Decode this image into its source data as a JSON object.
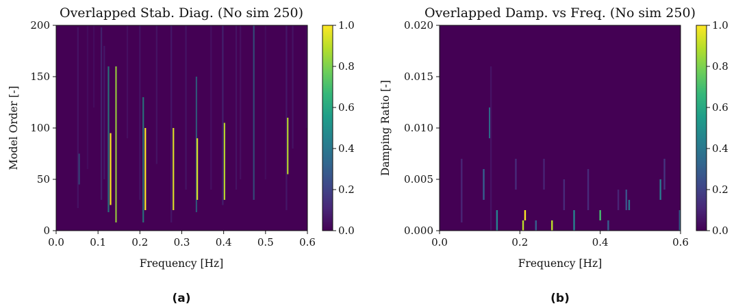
{
  "colors": {
    "background": "#440154",
    "colormap": [
      "#440154",
      "#482878",
      "#3e4989",
      "#31688e",
      "#26828e",
      "#1f9e89",
      "#35b779",
      "#6ece58",
      "#b5de2b",
      "#fde725"
    ]
  },
  "chart_data": [
    {
      "type": "heatmap",
      "panel_label": "(a)",
      "title": "Overlapped Stab. Diag. (No sim 250)",
      "xlabel": "Frequency [Hz]",
      "ylabel": "Model Order [-]",
      "xlim": [
        0.0,
        0.6
      ],
      "ylim": [
        0,
        200
      ],
      "xticks": [
        "0.0",
        "0.1",
        "0.2",
        "0.3",
        "0.4",
        "0.5",
        "0.6"
      ],
      "yticks": [
        "0",
        "50",
        "100",
        "150",
        "200"
      ],
      "colorbar": {
        "range": [
          0.0,
          1.0
        ],
        "ticks": [
          "0.0",
          "0.2",
          "0.4",
          "0.6",
          "0.8",
          "1.0"
        ]
      },
      "columns": [
        {
          "freq": 0.052,
          "order_range": [
            22,
            198
          ],
          "intensity": 0.12
        },
        {
          "freq": 0.055,
          "order_range": [
            45,
            75
          ],
          "intensity": 0.35
        },
        {
          "freq": 0.075,
          "order_range": [
            60,
            200
          ],
          "intensity": 0.08
        },
        {
          "freq": 0.09,
          "order_range": [
            120,
            200
          ],
          "intensity": 0.08
        },
        {
          "freq": 0.108,
          "order_range": [
            30,
            198
          ],
          "intensity": 0.2
        },
        {
          "freq": 0.115,
          "order_range": [
            50,
            180
          ],
          "intensity": 0.15
        },
        {
          "freq": 0.125,
          "order_range": [
            18,
            160
          ],
          "intensity": 0.55
        },
        {
          "freq": 0.13,
          "order_range": [
            25,
            95
          ],
          "intensity": 1.0
        },
        {
          "freq": 0.143,
          "order_range": [
            8,
            160
          ],
          "intensity": 0.85
        },
        {
          "freq": 0.17,
          "order_range": [
            90,
            200
          ],
          "intensity": 0.1
        },
        {
          "freq": 0.2,
          "order_range": [
            30,
            200
          ],
          "intensity": 0.12
        },
        {
          "freq": 0.208,
          "order_range": [
            8,
            130
          ],
          "intensity": 0.55
        },
        {
          "freq": 0.213,
          "order_range": [
            20,
            100
          ],
          "intensity": 1.0
        },
        {
          "freq": 0.24,
          "order_range": [
            65,
            200
          ],
          "intensity": 0.12
        },
        {
          "freq": 0.275,
          "order_range": [
            8,
            200
          ],
          "intensity": 0.15
        },
        {
          "freq": 0.28,
          "order_range": [
            20,
            100
          ],
          "intensity": 0.95
        },
        {
          "freq": 0.31,
          "order_range": [
            40,
            200
          ],
          "intensity": 0.12
        },
        {
          "freq": 0.335,
          "order_range": [
            18,
            150
          ],
          "intensity": 0.45
        },
        {
          "freq": 0.337,
          "order_range": [
            30,
            90
          ],
          "intensity": 0.95
        },
        {
          "freq": 0.37,
          "order_range": [
            40,
            200
          ],
          "intensity": 0.1
        },
        {
          "freq": 0.398,
          "order_range": [
            25,
            200
          ],
          "intensity": 0.2
        },
        {
          "freq": 0.402,
          "order_range": [
            30,
            105
          ],
          "intensity": 0.9
        },
        {
          "freq": 0.43,
          "order_range": [
            40,
            200
          ],
          "intensity": 0.12
        },
        {
          "freq": 0.44,
          "order_range": [
            50,
            200
          ],
          "intensity": 0.1
        },
        {
          "freq": 0.472,
          "order_range": [
            30,
            200
          ],
          "intensity": 0.4
        },
        {
          "freq": 0.5,
          "order_range": [
            50,
            200
          ],
          "intensity": 0.08
        },
        {
          "freq": 0.55,
          "order_range": [
            20,
            200
          ],
          "intensity": 0.15
        },
        {
          "freq": 0.553,
          "order_range": [
            55,
            110
          ],
          "intensity": 0.9
        },
        {
          "freq": 0.565,
          "order_range": [
            80,
            200
          ],
          "intensity": 0.12
        },
        {
          "freq": 0.598,
          "order_range": [
            100,
            200
          ],
          "intensity": 0.08
        }
      ]
    },
    {
      "type": "heatmap",
      "panel_label": "(b)",
      "title": "Overlapped Damp. vs Freq. (No sim 250)",
      "xlabel": "Frequency [Hz]",
      "ylabel": "Damping Ratio [-]",
      "xlim": [
        0.0,
        0.6
      ],
      "ylim": [
        0.0,
        0.02
      ],
      "xticks": [
        "0.0",
        "0.2",
        "0.4",
        "0.6"
      ],
      "yticks": [
        "0.000",
        "0.005",
        "0.010",
        "0.015",
        "0.020"
      ],
      "colorbar": {
        "range": [
          0.0,
          1.0
        ],
        "ticks": [
          "0.0",
          "0.2",
          "0.4",
          "0.6",
          "0.8",
          "1.0"
        ]
      },
      "columns": [
        {
          "freq": 0.055,
          "damp_range": [
            0.0008,
            0.007
          ],
          "intensity": 0.1
        },
        {
          "freq": 0.11,
          "damp_range": [
            0.003,
            0.006
          ],
          "intensity": 0.3
        },
        {
          "freq": 0.125,
          "damp_range": [
            0.009,
            0.012
          ],
          "intensity": 0.4
        },
        {
          "freq": 0.128,
          "damp_range": [
            0.0,
            0.016
          ],
          "intensity": 0.05
        },
        {
          "freq": 0.143,
          "damp_range": [
            0.0,
            0.002
          ],
          "intensity": 0.45
        },
        {
          "freq": 0.19,
          "damp_range": [
            0.004,
            0.007
          ],
          "intensity": 0.12
        },
        {
          "freq": 0.208,
          "damp_range": [
            0.0,
            0.001
          ],
          "intensity": 0.9
        },
        {
          "freq": 0.213,
          "damp_range": [
            0.001,
            0.002
          ],
          "intensity": 1.0
        },
        {
          "freq": 0.24,
          "damp_range": [
            0.0,
            0.001
          ],
          "intensity": 0.3
        },
        {
          "freq": 0.26,
          "damp_range": [
            0.004,
            0.007
          ],
          "intensity": 0.1
        },
        {
          "freq": 0.28,
          "damp_range": [
            0.0,
            0.001
          ],
          "intensity": 0.9
        },
        {
          "freq": 0.31,
          "damp_range": [
            0.002,
            0.005
          ],
          "intensity": 0.12
        },
        {
          "freq": 0.335,
          "damp_range": [
            0.0,
            0.002
          ],
          "intensity": 0.45
        },
        {
          "freq": 0.37,
          "damp_range": [
            0.002,
            0.006
          ],
          "intensity": 0.12
        },
        {
          "freq": 0.4,
          "damp_range": [
            0.001,
            0.002
          ],
          "intensity": 0.7
        },
        {
          "freq": 0.42,
          "damp_range": [
            0.0,
            0.001
          ],
          "intensity": 0.3
        },
        {
          "freq": 0.445,
          "damp_range": [
            0.002,
            0.004
          ],
          "intensity": 0.1
        },
        {
          "freq": 0.465,
          "damp_range": [
            0.002,
            0.004
          ],
          "intensity": 0.25
        },
        {
          "freq": 0.472,
          "damp_range": [
            0.002,
            0.003
          ],
          "intensity": 0.4
        },
        {
          "freq": 0.55,
          "damp_range": [
            0.003,
            0.005
          ],
          "intensity": 0.4
        },
        {
          "freq": 0.56,
          "damp_range": [
            0.004,
            0.007
          ],
          "intensity": 0.15
        },
        {
          "freq": 0.598,
          "damp_range": [
            0.0,
            0.002
          ],
          "intensity": 0.3
        }
      ]
    }
  ]
}
